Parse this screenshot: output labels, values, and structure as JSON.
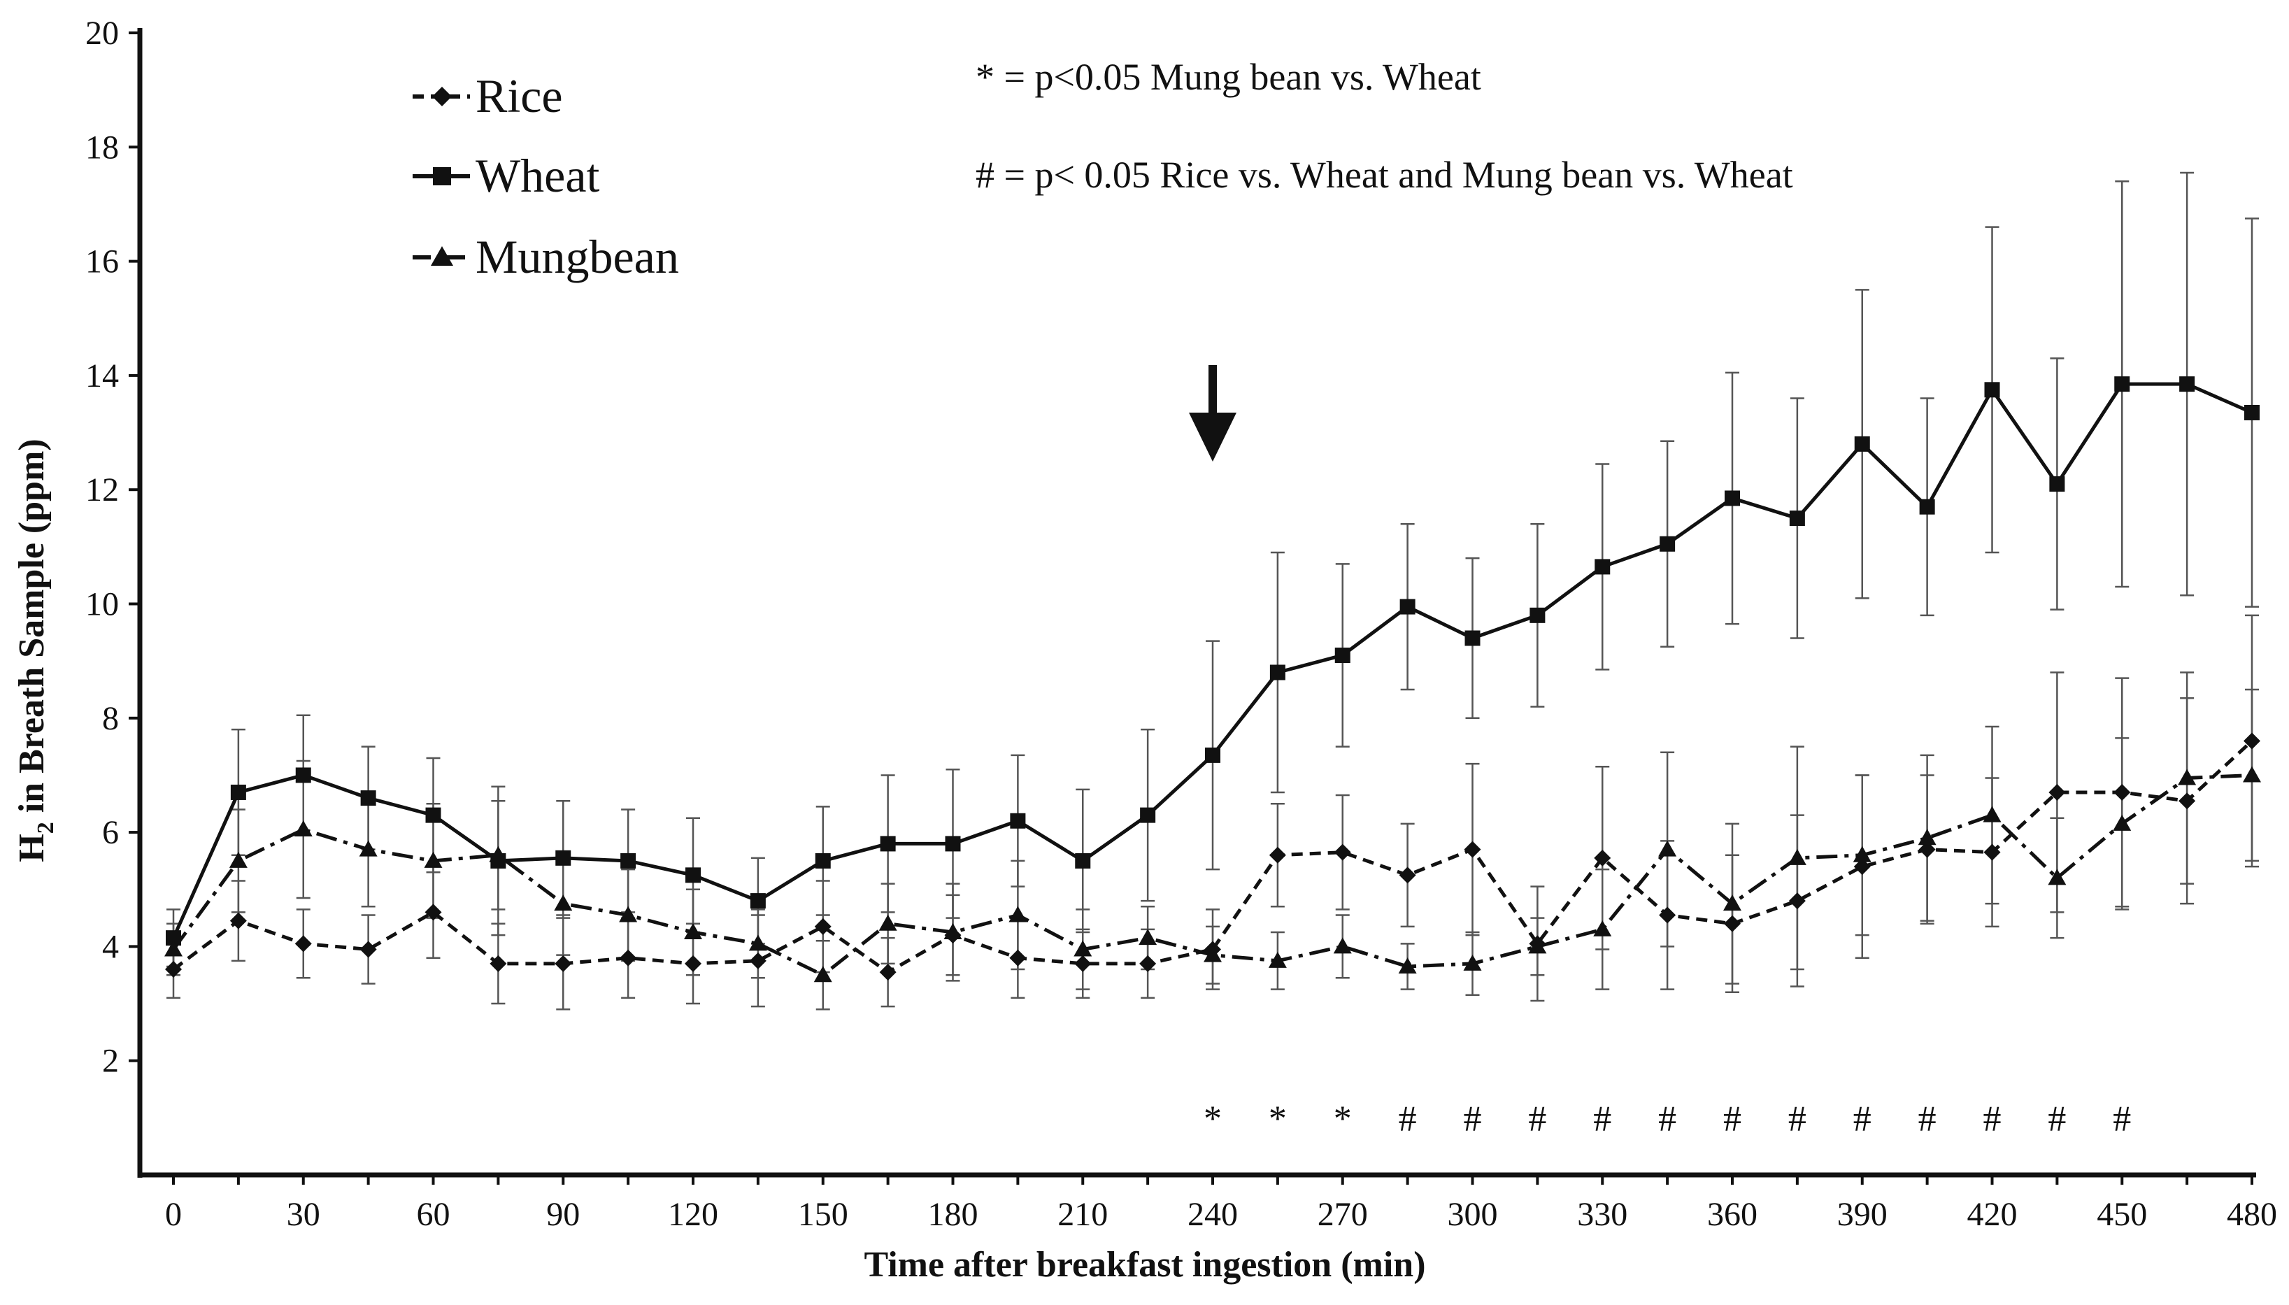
{
  "chart_data": {
    "type": "line",
    "title": "",
    "xlabel": "Time after breakfast ingestion (min)",
    "ylabel_main": "H",
    "ylabel_sub": "2",
    "ylabel_rest": " in Breath Sample (ppm)",
    "xlim": [
      0,
      480
    ],
    "ylim": [
      0,
      20
    ],
    "x_ticks": [
      0,
      30,
      60,
      90,
      120,
      150,
      180,
      210,
      240,
      270,
      300,
      330,
      360,
      390,
      420,
      450,
      480
    ],
    "y_ticks": [
      2,
      4,
      6,
      8,
      10,
      12,
      14,
      16,
      18,
      20
    ],
    "x": [
      0,
      15,
      30,
      45,
      60,
      75,
      90,
      105,
      120,
      135,
      150,
      165,
      180,
      195,
      210,
      225,
      240,
      255,
      270,
      285,
      300,
      315,
      330,
      345,
      360,
      375,
      390,
      405,
      420,
      435,
      450,
      465,
      480
    ],
    "series": [
      {
        "name": "Rice",
        "marker": "diamond",
        "dash": "short-dash",
        "values": [
          3.6,
          4.45,
          4.05,
          3.95,
          4.6,
          3.7,
          3.7,
          3.8,
          3.7,
          3.75,
          4.35,
          3.55,
          4.2,
          3.8,
          3.7,
          3.7,
          3.95,
          5.6,
          5.65,
          5.25,
          5.7,
          4.05,
          5.55,
          4.55,
          4.4,
          4.8,
          5.4,
          5.7,
          5.65,
          6.7,
          6.7,
          6.55,
          7.6
        ],
        "errors": [
          0.5,
          0.7,
          0.6,
          0.6,
          0.8,
          0.7,
          0.8,
          0.7,
          0.7,
          0.8,
          0.8,
          0.6,
          0.7,
          0.7,
          0.6,
          0.6,
          0.7,
          0.9,
          1.0,
          0.9,
          1.5,
          1.0,
          1.6,
          1.3,
          1.2,
          1.5,
          1.6,
          1.3,
          1.3,
          2.1,
          2.0,
          1.8,
          2.2
        ]
      },
      {
        "name": "Wheat",
        "marker": "square",
        "dash": "solid",
        "values": [
          4.15,
          6.7,
          7.0,
          6.6,
          6.3,
          5.5,
          5.55,
          5.5,
          5.25,
          4.8,
          5.5,
          5.8,
          5.8,
          6.2,
          5.5,
          6.3,
          7.35,
          8.8,
          9.1,
          9.95,
          9.4,
          9.8,
          10.65,
          11.05,
          11.85,
          11.5,
          12.8,
          11.7,
          13.75,
          12.1,
          13.85,
          13.85,
          13.35
        ],
        "errors": [
          0.5,
          1.1,
          1.05,
          0.9,
          1.0,
          1.3,
          1.0,
          0.9,
          1.0,
          0.75,
          0.95,
          1.2,
          1.3,
          1.15,
          1.25,
          1.5,
          2.0,
          2.1,
          1.6,
          1.45,
          1.4,
          1.6,
          1.8,
          1.8,
          2.2,
          2.1,
          2.7,
          1.9,
          2.85,
          2.2,
          3.55,
          3.7,
          3.4
        ]
      },
      {
        "name": "Mungbean",
        "marker": "triangle",
        "dash": "dash-dot",
        "values": [
          3.95,
          5.5,
          6.05,
          5.7,
          5.5,
          5.6,
          4.75,
          4.55,
          4.25,
          4.05,
          3.5,
          4.4,
          4.25,
          4.55,
          3.95,
          4.15,
          3.85,
          3.75,
          4.0,
          3.65,
          3.7,
          4.0,
          4.3,
          5.7,
          4.75,
          5.55,
          5.6,
          5.9,
          6.3,
          5.2,
          6.15,
          6.95,
          7.0
        ],
        "errors": [
          0.45,
          0.9,
          1.2,
          1.0,
          1.0,
          0.95,
          0.9,
          0.8,
          0.75,
          0.6,
          0.6,
          0.7,
          0.85,
          0.95,
          0.7,
          0.55,
          0.5,
          0.5,
          0.55,
          0.4,
          0.55,
          0.5,
          1.05,
          1.7,
          1.4,
          1.95,
          1.4,
          1.45,
          1.55,
          1.05,
          1.5,
          1.85,
          1.5
        ]
      }
    ],
    "arrow_at_x": 240,
    "significance_y": 1.0,
    "significance": [
      {
        "x": 240,
        "symbol": "*"
      },
      {
        "x": 255,
        "symbol": "*"
      },
      {
        "x": 270,
        "symbol": "*"
      },
      {
        "x": 285,
        "symbol": "#"
      },
      {
        "x": 300,
        "symbol": "#"
      },
      {
        "x": 315,
        "symbol": "#"
      },
      {
        "x": 330,
        "symbol": "#"
      },
      {
        "x": 345,
        "symbol": "#"
      },
      {
        "x": 360,
        "symbol": "#"
      },
      {
        "x": 375,
        "symbol": "#"
      },
      {
        "x": 390,
        "symbol": "#"
      },
      {
        "x": 405,
        "symbol": "#"
      },
      {
        "x": 420,
        "symbol": "#"
      },
      {
        "x": 435,
        "symbol": "#"
      },
      {
        "x": 450,
        "symbol": "#"
      }
    ],
    "annotations": [
      "* = p<0.05 Mung bean vs. Wheat",
      "# = p< 0.05 Rice vs. Wheat and Mung bean vs. Wheat"
    ],
    "legend": [
      "Rice",
      "Wheat",
      "Mungbean"
    ],
    "legend_position": "top-left",
    "grid": false
  }
}
